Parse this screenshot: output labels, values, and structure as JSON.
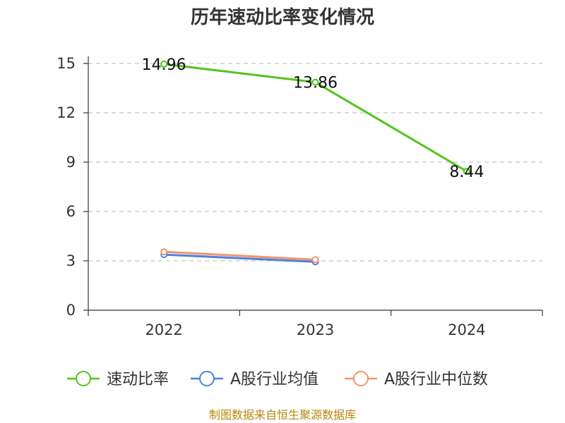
{
  "chart_data": {
    "type": "line",
    "title": "历年速动比率变化情况",
    "categories": [
      "2022",
      "2023",
      "2024"
    ],
    "ylim": [
      0,
      15
    ],
    "y_ticks": [
      0,
      3,
      6,
      9,
      12,
      15
    ],
    "grid": true,
    "legend_position": "bottom",
    "series": [
      {
        "name": "速动比率",
        "color": "#52c41a",
        "values": [
          14.96,
          13.86,
          8.44
        ],
        "data_labels": [
          "14.96",
          "13.86",
          "8.44"
        ]
      },
      {
        "name": "A股行业均值",
        "color": "#4e7fe0",
        "values": [
          3.38,
          2.94,
          null
        ]
      },
      {
        "name": "A股行业中位数",
        "color": "#f0956a",
        "values": [
          3.55,
          3.07,
          null
        ]
      }
    ]
  },
  "source_note": "制图数据来自恒生聚源数据库"
}
